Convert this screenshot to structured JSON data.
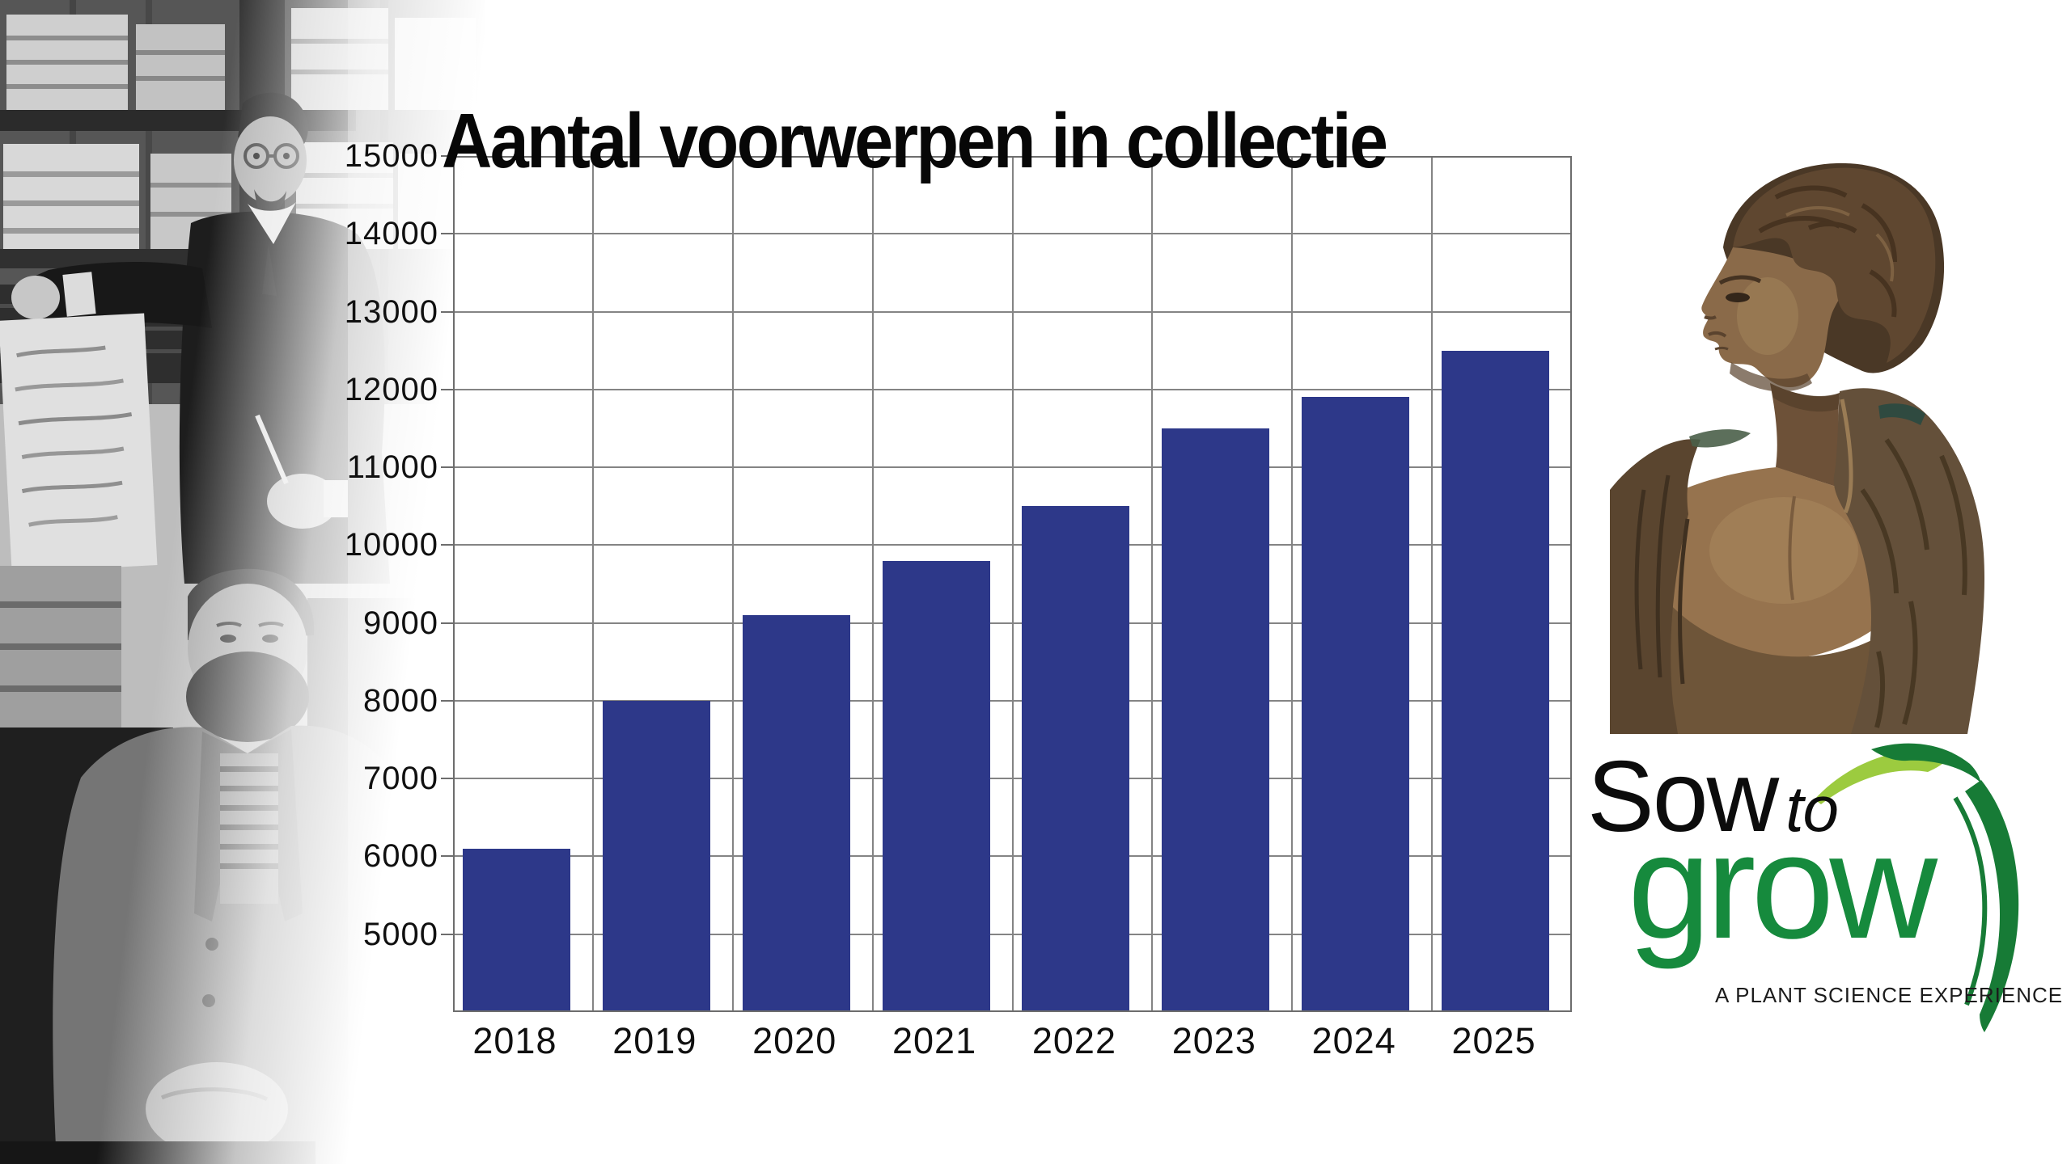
{
  "chart_data": {
    "type": "bar",
    "title": "Aantal voorwerpen in collectie",
    "categories": [
      "2018",
      "2019",
      "2020",
      "2021",
      "2022",
      "2023",
      "2024",
      "2025"
    ],
    "values": [
      6100,
      8000,
      9100,
      9800,
      10500,
      11500,
      11900,
      12500
    ],
    "xlabel": "",
    "ylabel": "",
    "ylim": [
      4000,
      15000
    ],
    "yticks": [
      5000,
      6000,
      7000,
      8000,
      9000,
      10000,
      11000,
      12000,
      13000,
      14000,
      15000
    ],
    "grid": "both",
    "legend": "none",
    "bar_color": "#2D3889",
    "grid_color": "#848484"
  },
  "logo": {
    "sow": "Sow",
    "to": "to",
    "grow": "grow",
    "tagline": "A PLANT SCIENCE EXPERIENCE",
    "text_green": "#168A3D",
    "leaf_green": "#177B36",
    "leaf_lime": "#9CCB3F"
  },
  "images": {
    "left_photo": "historical-archive-photo",
    "right_photo": "bronze-bust-statue-photo"
  }
}
